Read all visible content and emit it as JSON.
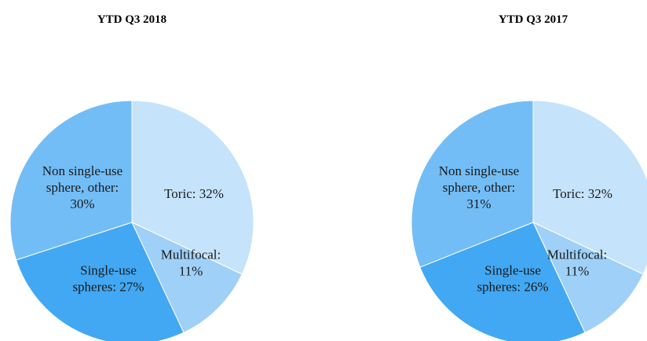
{
  "chart_data": [
    {
      "type": "pie",
      "title": "YTD Q3 2018",
      "slices": [
        {
          "category": "Toric",
          "value": 32,
          "label_lines": [
            "Toric: 32%"
          ],
          "color": "#c5e3fb"
        },
        {
          "category": "Multifocal",
          "value": 11,
          "label_lines": [
            "Multifocal:",
            "11%"
          ],
          "color": "#9fd0f7"
        },
        {
          "category": "Single-use spheres",
          "value": 27,
          "label_lines": [
            "Single-use",
            "spheres: 27%"
          ],
          "color": "#42a8f3"
        },
        {
          "category": "Non single-use sphere, other",
          "value": 30,
          "label_lines": [
            "Non single-use",
            "sphere, other:",
            "30%"
          ],
          "color": "#73bdf6"
        }
      ]
    },
    {
      "type": "pie",
      "title": "YTD Q3 2017",
      "slices": [
        {
          "category": "Toric",
          "value": 32,
          "label_lines": [
            "Toric: 32%"
          ],
          "color": "#c5e3fb"
        },
        {
          "category": "Multifocal",
          "value": 11,
          "label_lines": [
            "Multifocal:",
            "11%"
          ],
          "color": "#9fd0f7"
        },
        {
          "category": "Single-use spheres",
          "value": 26,
          "label_lines": [
            "Single-use",
            "spheres: 26%"
          ],
          "color": "#42a8f3"
        },
        {
          "category": "Non single-use sphere, other",
          "value": 31,
          "label_lines": [
            "Non single-use",
            "sphere, other:",
            "31%"
          ],
          "color": "#73bdf6"
        }
      ]
    }
  ]
}
